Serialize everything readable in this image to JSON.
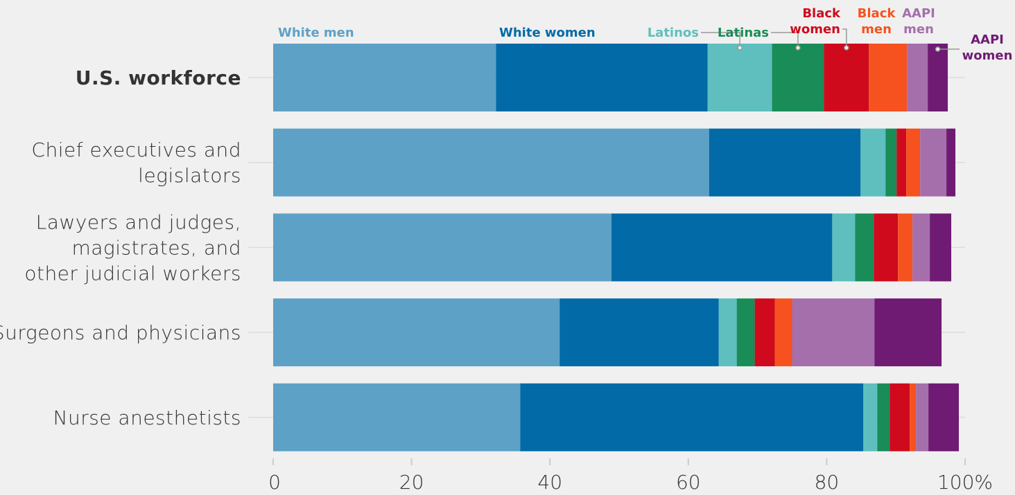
{
  "chart_data": {
    "type": "bar",
    "orientation": "horizontal",
    "stacked": true,
    "categories": [
      [
        "U.S. workforce"
      ],
      [
        "Chief executives and",
        "legislators"
      ],
      [
        "Lawyers and judges,",
        "magistrates, and",
        "other judicial workers"
      ],
      [
        "Surgeons and physicians"
      ],
      [
        "Nurse anesthetists"
      ]
    ],
    "highlight_category": 0,
    "series": [
      {
        "name": "White men",
        "color": "#5ea1c7",
        "values": [
          32.2,
          63.0,
          48.9,
          41.4,
          35.7
        ]
      },
      {
        "name": "White women",
        "color": "#016aa7",
        "values": [
          30.6,
          21.9,
          31.9,
          23.0,
          49.6
        ]
      },
      {
        "name": "Latinos",
        "color": "#5ebfbe",
        "values": [
          9.3,
          3.6,
          3.3,
          2.6,
          2.0
        ]
      },
      {
        "name": "Latinas",
        "color": "#1a8c58",
        "values": [
          7.5,
          1.6,
          2.7,
          2.6,
          1.8
        ]
      },
      {
        "name": "Black women",
        "color": "#cf0a1d",
        "values": [
          6.5,
          1.4,
          3.5,
          2.9,
          2.9
        ]
      },
      {
        "name": "Black men",
        "color": "#f55220",
        "values": [
          5.5,
          2.0,
          2.1,
          2.5,
          0.9
        ]
      },
      {
        "name": "AAPI men",
        "color": "#a56fab",
        "values": [
          3.0,
          3.8,
          2.5,
          11.9,
          1.8
        ]
      },
      {
        "name": "AAPI women",
        "color": "#6f1b73",
        "values": [
          2.9,
          1.3,
          3.1,
          9.7,
          4.4
        ]
      }
    ],
    "legend": [
      {
        "lines": [
          "White men"
        ],
        "color": "#5ea1c7"
      },
      {
        "lines": [
          "White women"
        ],
        "color": "#016aa7"
      },
      {
        "lines": [
          "Latinos"
        ],
        "color": "#5ebfbe"
      },
      {
        "lines": [
          "Latinas"
        ],
        "color": "#1a8c58"
      },
      {
        "lines": [
          "Black",
          "women"
        ],
        "color": "#cf0a1d"
      },
      {
        "lines": [
          "Black",
          "men"
        ],
        "color": "#f55220"
      },
      {
        "lines": [
          "AAPI",
          "men"
        ],
        "color": "#a56fab"
      },
      {
        "lines": [
          "AAPI",
          "women"
        ],
        "color": "#6f1b73"
      }
    ],
    "xlim": [
      0,
      100
    ],
    "xticks": [
      0,
      20,
      40,
      60,
      80,
      100
    ],
    "xtick_labels": [
      "0",
      "20",
      "40",
      "60",
      "80",
      "100%"
    ],
    "grid": true
  }
}
